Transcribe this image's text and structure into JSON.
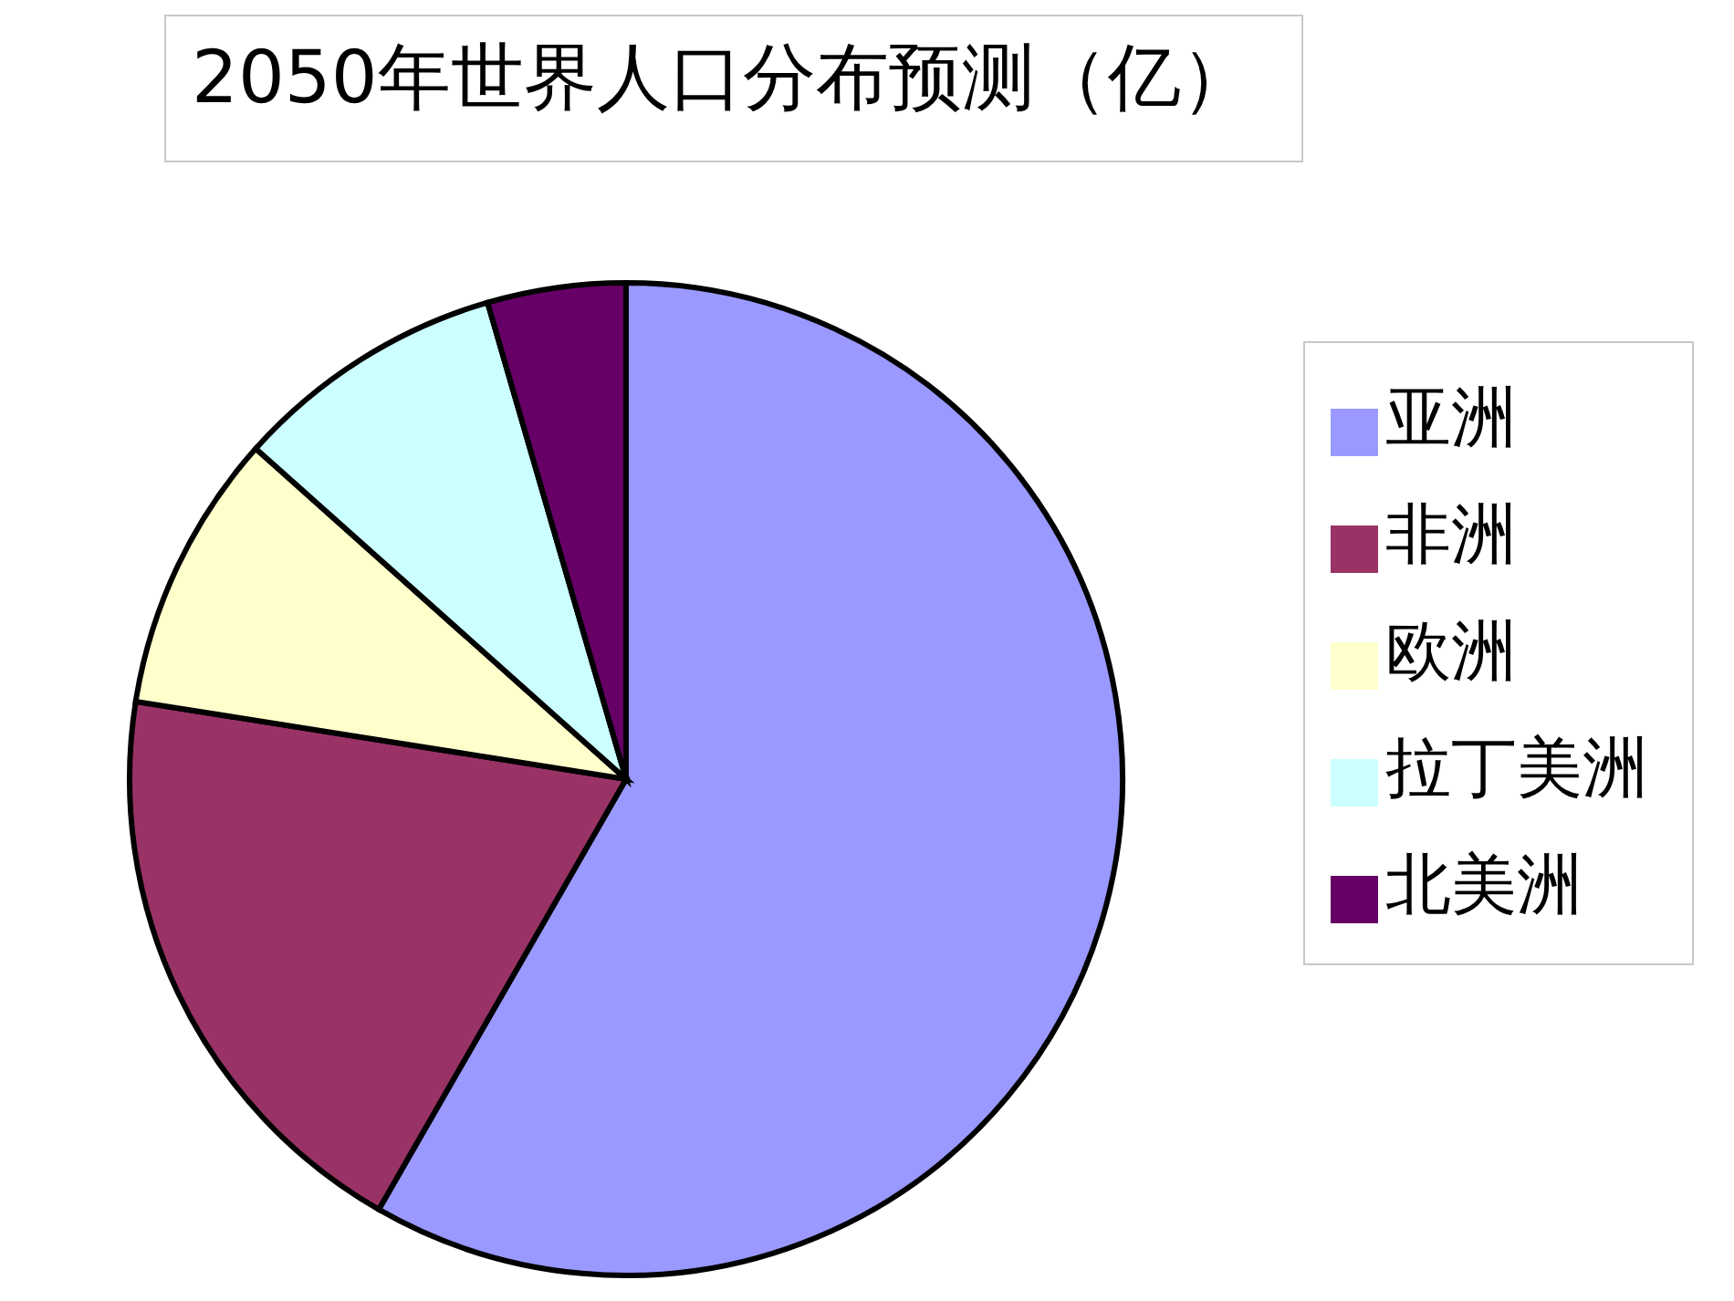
{
  "chart_data": {
    "type": "pie",
    "title": "2050年世界人口分布预测（亿）",
    "categories": [
      "亚洲",
      "非洲",
      "欧洲",
      "拉丁美洲",
      "北美洲"
    ],
    "values": [
      58.3,
      19.2,
      9.1,
      8.9,
      4.5
    ],
    "colors": [
      "#9999ff",
      "#993366",
      "#ffffcc",
      "#ccffff",
      "#660066"
    ],
    "legend": "right"
  }
}
